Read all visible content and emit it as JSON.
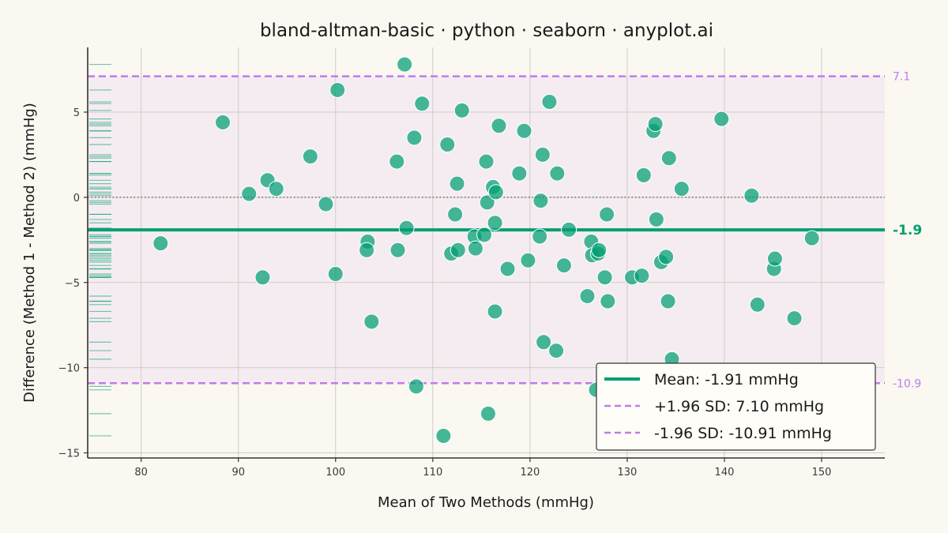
{
  "chart_data": {
    "type": "scatter",
    "title": "bland-altman-basic · python · seaborn · anyplot.ai",
    "xlabel": "Mean of Two Methods (mmHg)",
    "ylabel": "Difference (Method 1 - Method 2) (mmHg)",
    "xlim": [
      74.5,
      156.5
    ],
    "ylim": [
      -15.3,
      8.8
    ],
    "xticks": [
      80,
      90,
      100,
      110,
      120,
      130,
      140,
      150
    ],
    "yticks": [
      -15,
      -10,
      -5,
      0,
      5
    ],
    "ytick_labels": [
      "−15",
      "−10",
      "−5",
      "0",
      "5"
    ],
    "grid": true,
    "zero_line": true,
    "mean_difference": -1.91,
    "upper_loa": 7.1,
    "lower_loa": -10.91,
    "mean_annotation": "-1.9",
    "upper_annotation": "7.1",
    "lower_annotation": "-10.9",
    "legend": [
      {
        "label": "Mean: -1.91 mmHg",
        "style": "solid",
        "color": "#009E73"
      },
      {
        "label": "+1.96 SD: 7.10 mmHg",
        "style": "dashed",
        "color": "#BF7AF0"
      },
      {
        "label": "-1.96 SD: -10.91 mmHg",
        "style": "dashed",
        "color": "#BF7AF0"
      }
    ],
    "legend_position": "lower-right",
    "colors": {
      "points": "#009E73",
      "mean_line": "#009E73",
      "loa": "#BF7AF0",
      "band": "#F5ECF1",
      "background": "#FAF8F1"
    },
    "points": [
      {
        "x": 82.0,
        "y": -2.7
      },
      {
        "x": 88.4,
        "y": 4.4
      },
      {
        "x": 91.1,
        "y": 0.2
      },
      {
        "x": 92.5,
        "y": -4.7
      },
      {
        "x": 93.0,
        "y": 1.0
      },
      {
        "x": 93.9,
        "y": 0.5
      },
      {
        "x": 97.4,
        "y": 2.4
      },
      {
        "x": 99.0,
        "y": -0.4
      },
      {
        "x": 100.0,
        "y": -4.5
      },
      {
        "x": 100.2,
        "y": 6.3
      },
      {
        "x": 103.3,
        "y": -2.6
      },
      {
        "x": 103.2,
        "y": -3.1
      },
      {
        "x": 103.7,
        "y": -7.3
      },
      {
        "x": 106.3,
        "y": 2.1
      },
      {
        "x": 106.4,
        "y": -3.1
      },
      {
        "x": 107.1,
        "y": 7.8
      },
      {
        "x": 107.3,
        "y": -1.8
      },
      {
        "x": 108.1,
        "y": 3.5
      },
      {
        "x": 108.3,
        "y": -11.1
      },
      {
        "x": 108.9,
        "y": 5.5
      },
      {
        "x": 111.1,
        "y": -14.0
      },
      {
        "x": 111.5,
        "y": 3.1
      },
      {
        "x": 111.9,
        "y": -3.3
      },
      {
        "x": 112.3,
        "y": -1.0
      },
      {
        "x": 112.5,
        "y": 0.8
      },
      {
        "x": 112.6,
        "y": -3.1
      },
      {
        "x": 113.0,
        "y": 5.1
      },
      {
        "x": 114.3,
        "y": -2.3
      },
      {
        "x": 114.4,
        "y": -3.0
      },
      {
        "x": 115.3,
        "y": -2.2
      },
      {
        "x": 115.5,
        "y": 2.1
      },
      {
        "x": 115.6,
        "y": -0.3
      },
      {
        "x": 115.7,
        "y": -12.7
      },
      {
        "x": 116.2,
        "y": 0.6
      },
      {
        "x": 116.4,
        "y": -1.5
      },
      {
        "x": 116.4,
        "y": -6.7
      },
      {
        "x": 116.5,
        "y": 0.3
      },
      {
        "x": 116.8,
        "y": 4.2
      },
      {
        "x": 117.7,
        "y": -4.2
      },
      {
        "x": 118.9,
        "y": 1.4
      },
      {
        "x": 119.4,
        "y": 3.9
      },
      {
        "x": 119.8,
        "y": -3.7
      },
      {
        "x": 121.0,
        "y": -2.3
      },
      {
        "x": 121.1,
        "y": -0.2
      },
      {
        "x": 121.3,
        "y": 2.5
      },
      {
        "x": 121.4,
        "y": -8.5
      },
      {
        "x": 122.0,
        "y": 5.6
      },
      {
        "x": 122.7,
        "y": -9.0
      },
      {
        "x": 122.8,
        "y": 1.4
      },
      {
        "x": 123.5,
        "y": -4.0
      },
      {
        "x": 124.0,
        "y": -1.9
      },
      {
        "x": 125.9,
        "y": -5.8
      },
      {
        "x": 126.3,
        "y": -2.6
      },
      {
        "x": 126.4,
        "y": -3.4
      },
      {
        "x": 126.8,
        "y": -11.3
      },
      {
        "x": 127.0,
        "y": -3.3
      },
      {
        "x": 127.1,
        "y": -3.1
      },
      {
        "x": 127.7,
        "y": -4.7
      },
      {
        "x": 127.9,
        "y": -1.0
      },
      {
        "x": 128.0,
        "y": -6.1
      },
      {
        "x": 130.5,
        "y": -4.7
      },
      {
        "x": 131.5,
        "y": -4.6
      },
      {
        "x": 131.7,
        "y": 1.3
      },
      {
        "x": 132.7,
        "y": 3.9
      },
      {
        "x": 132.9,
        "y": 4.3
      },
      {
        "x": 133.0,
        "y": -1.3
      },
      {
        "x": 133.5,
        "y": -3.8
      },
      {
        "x": 134.0,
        "y": -3.5
      },
      {
        "x": 134.2,
        "y": -6.1
      },
      {
        "x": 134.3,
        "y": 2.3
      },
      {
        "x": 134.6,
        "y": -9.5
      },
      {
        "x": 135.6,
        "y": 0.5
      },
      {
        "x": 139.7,
        "y": 4.6
      },
      {
        "x": 142.8,
        "y": 0.1
      },
      {
        "x": 143.4,
        "y": -6.3
      },
      {
        "x": 145.1,
        "y": -4.2
      },
      {
        "x": 145.2,
        "y": -3.6
      },
      {
        "x": 147.2,
        "y": -7.1
      },
      {
        "x": 149.0,
        "y": -2.4
      }
    ]
  }
}
